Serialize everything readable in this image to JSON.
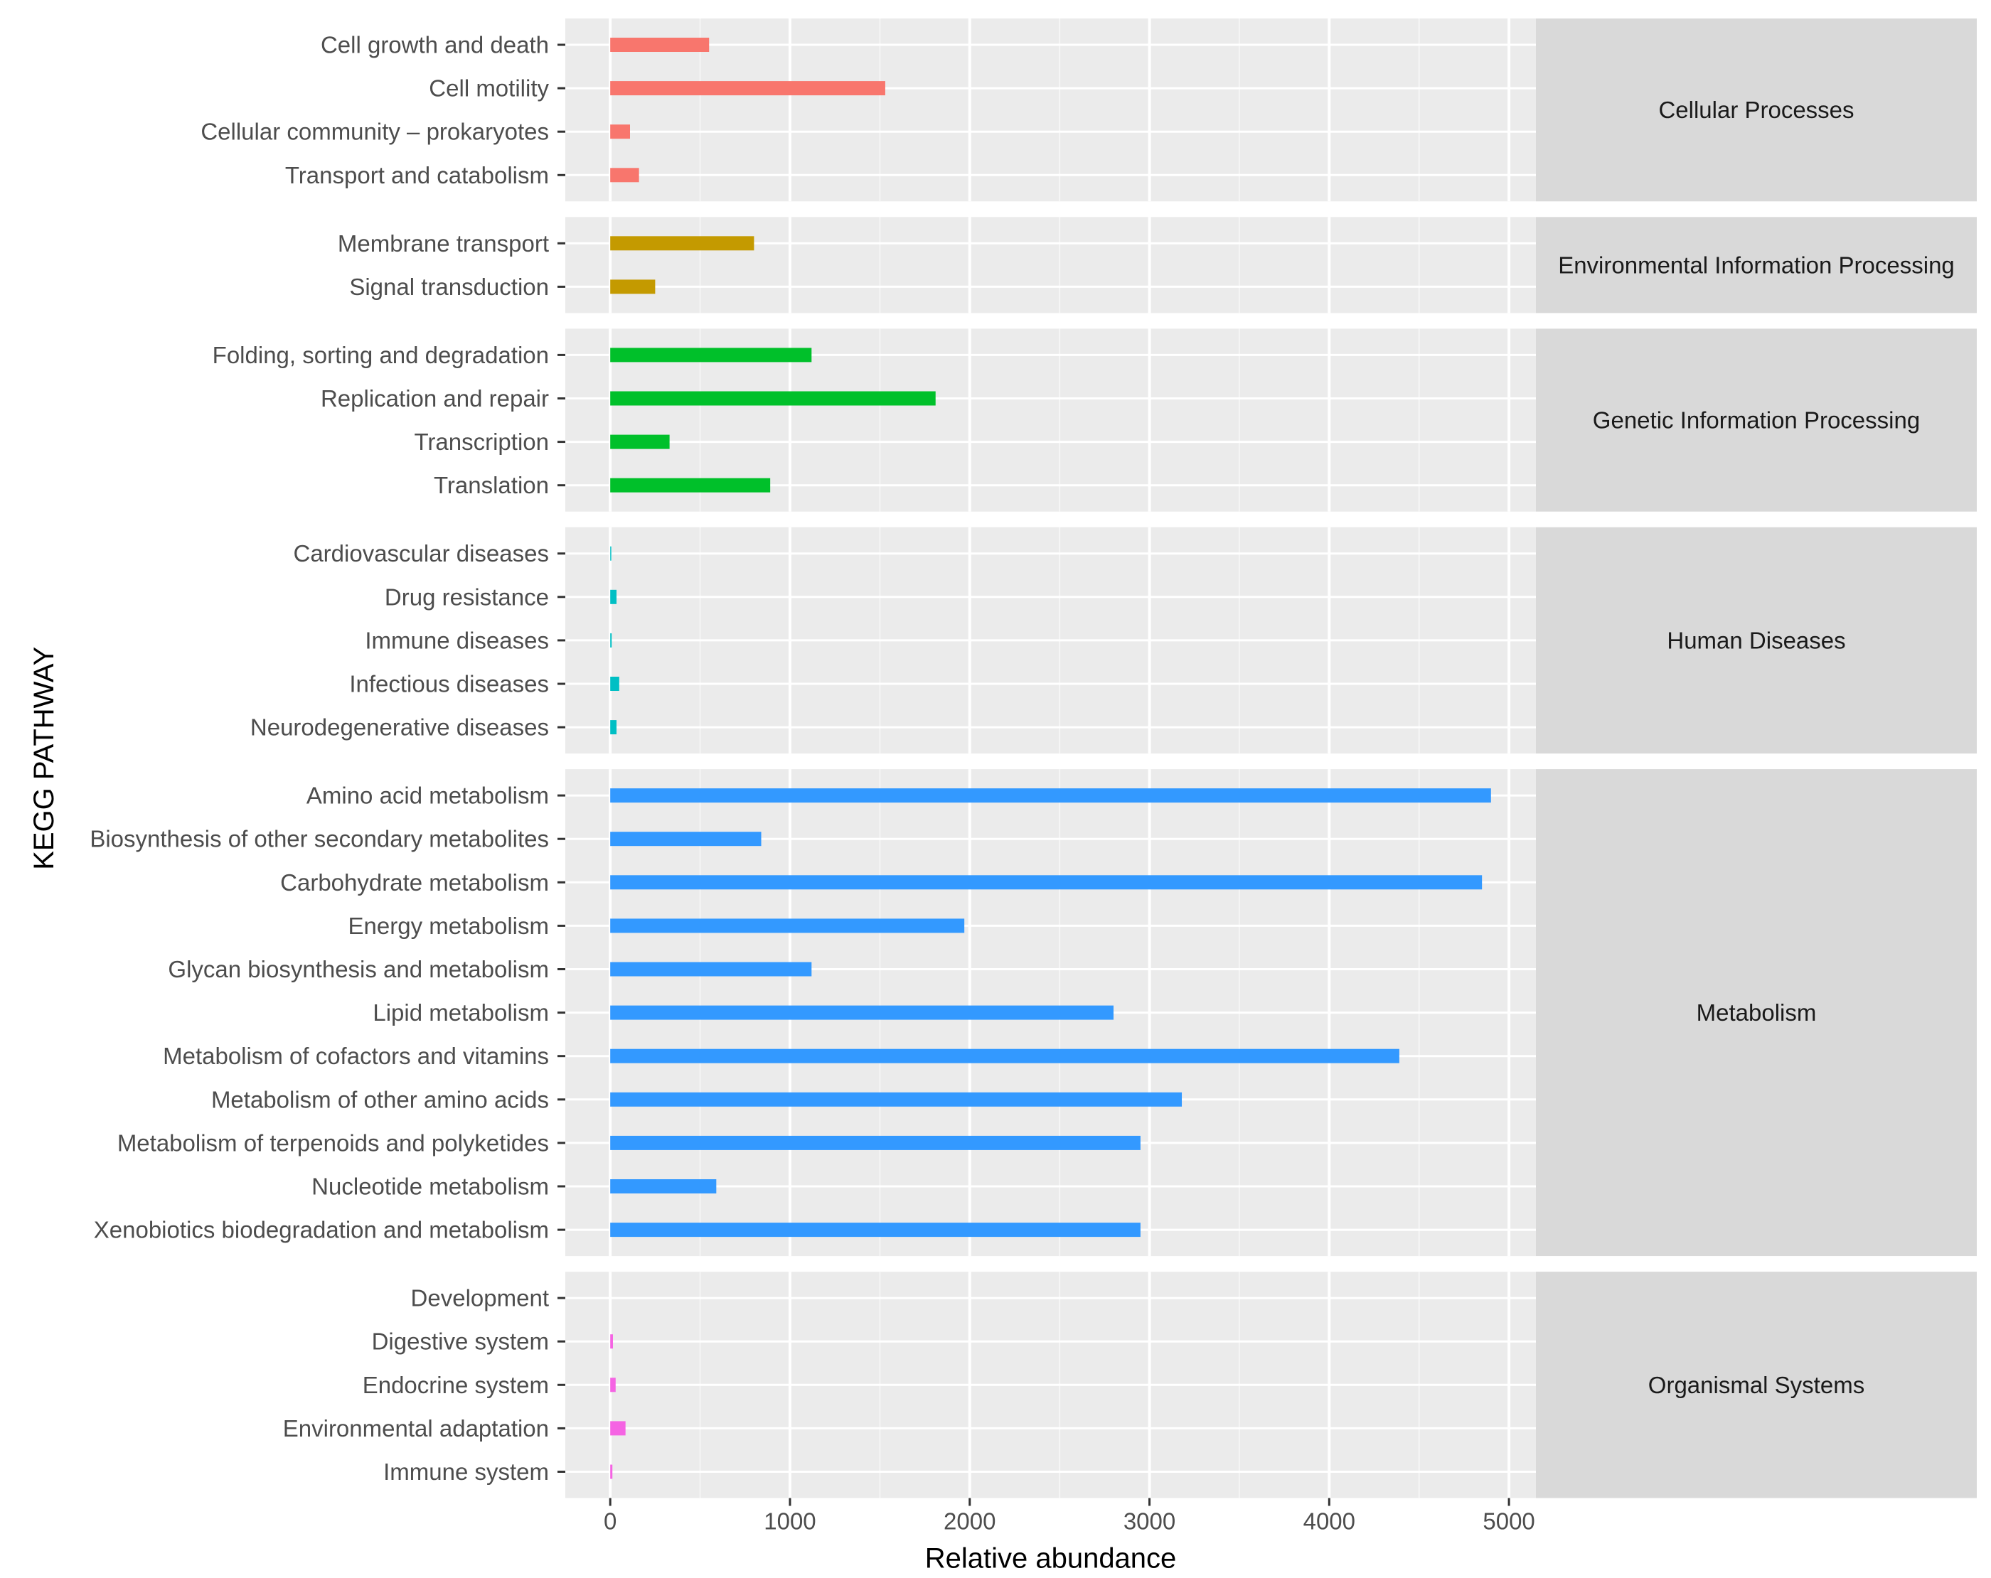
{
  "chart_data": {
    "type": "bar",
    "orientation": "horizontal",
    "xlabel": "Relative abundance",
    "ylabel": "KEGG PATHWAY",
    "xlim": [
      -250,
      5150
    ],
    "xticks": [
      0,
      1000,
      2000,
      3000,
      4000,
      5000
    ],
    "grid": true,
    "legend": "none",
    "facets": [
      {
        "name": "Cellular Processes",
        "color": "#F8766D",
        "categories": [
          "Cell growth and death",
          "Cell motility",
          "Cellular community – prokaryotes",
          "Transport and catabolism"
        ],
        "values": [
          550,
          1530,
          110,
          160
        ]
      },
      {
        "name": "Environmental Information Processing",
        "color": "#C49A00",
        "categories": [
          "Membrane transport",
          "Signal transduction"
        ],
        "values": [
          800,
          250
        ]
      },
      {
        "name": "Genetic Information Processing",
        "color": "#00C02A",
        "categories": [
          "Folding, sorting and degradation",
          "Replication and repair",
          "Transcription",
          "Translation"
        ],
        "values": [
          1120,
          1810,
          330,
          890
        ]
      },
      {
        "name": "Human Diseases",
        "color": "#00BFC4",
        "categories": [
          "Cardiovascular diseases",
          "Drug resistance",
          "Immune diseases",
          "Infectious diseases",
          "Neurodegenerative diseases"
        ],
        "values": [
          5,
          35,
          8,
          50,
          35
        ]
      },
      {
        "name": "Metabolism",
        "color": "#3399FF",
        "categories": [
          "Amino acid metabolism",
          "Biosynthesis of other secondary metabolites",
          "Carbohydrate metabolism",
          "Energy metabolism",
          "Glycan biosynthesis and metabolism",
          "Lipid metabolism",
          "Metabolism of cofactors and vitamins",
          "Metabolism of other amino acids",
          "Metabolism of terpenoids and polyketides",
          "Nucleotide metabolism",
          "Xenobiotics biodegradation and metabolism"
        ],
        "values": [
          4900,
          840,
          4850,
          1970,
          1120,
          2800,
          4390,
          3180,
          2950,
          590,
          2950
        ]
      },
      {
        "name": "Organismal Systems",
        "color": "#F564E3",
        "categories": [
          "Development",
          "Digestive system",
          "Endocrine system",
          "Environmental adaptation",
          "Immune system"
        ],
        "values": [
          0,
          15,
          30,
          85,
          12
        ]
      }
    ]
  }
}
